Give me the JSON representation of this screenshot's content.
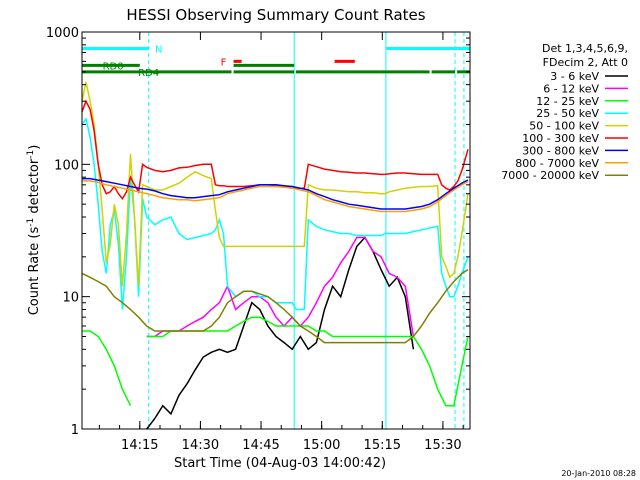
{
  "chart_data": {
    "type": "line",
    "title": "HESSI Observing Summary Count Rates",
    "xlabel": "Start Time (04-Aug-03 14:00:42)",
    "ylabel_main": "Count Rate (s",
    "ylabel_sup1": "-1",
    "ylabel_mid": " detector",
    "ylabel_sup2": "-1",
    "ylabel_end": ")",
    "yscale": "log",
    "ylim": [
      1,
      1000
    ],
    "xlim": [
      0,
      96
    ],
    "x_units": "minutes after 14:00:42",
    "x_ticks": [
      {
        "value": 14.3,
        "label": "14:15"
      },
      {
        "value": 29.3,
        "label": "14:30"
      },
      {
        "value": 44.3,
        "label": "14:45"
      },
      {
        "value": 59.3,
        "label": "15:00"
      },
      {
        "value": 74.3,
        "label": "15:15"
      },
      {
        "value": 89.3,
        "label": "15:30"
      }
    ],
    "y_ticks": [
      {
        "value": 1,
        "label": "1"
      },
      {
        "value": 10,
        "label": "10"
      },
      {
        "value": 100,
        "label": "100"
      },
      {
        "value": 1000,
        "label": "1000"
      }
    ],
    "legend_header": [
      "Det 1,3,4,5,6,9,",
      "FDecim 2, Att 0"
    ],
    "legend_position": "right",
    "series": [
      {
        "name": "3 - 6 keV",
        "color": "#000000",
        "x": [
          0,
          4,
          8,
          10,
          12,
          14,
          16,
          18,
          20,
          22,
          24,
          26,
          28,
          30,
          32,
          34,
          36,
          38,
          40,
          42,
          44,
          46,
          48,
          50,
          52,
          54,
          56,
          58,
          60,
          62,
          64,
          66,
          68,
          70,
          72,
          74,
          76,
          78,
          80,
          82,
          84,
          86,
          88,
          90,
          92,
          94,
          95.5
        ],
        "y": [
          null,
          null,
          null,
          null,
          null,
          null,
          1.0,
          1.2,
          1.5,
          1.3,
          1.8,
          2.2,
          2.8,
          3.5,
          3.8,
          4,
          3.8,
          4,
          6,
          9,
          8,
          6,
          5,
          4.5,
          4,
          5,
          4,
          4.5,
          8,
          12,
          10,
          16,
          24,
          28,
          22,
          16,
          12,
          14,
          10,
          4,
          null,
          null,
          null,
          null,
          null,
          null,
          null
        ]
      },
      {
        "name": "6 - 12 keV",
        "color": "#ff00ff",
        "x": [
          0,
          2,
          4,
          6,
          8,
          10,
          12,
          14,
          16,
          18,
          20,
          22,
          24,
          26,
          28,
          30,
          32,
          34,
          36,
          38,
          40,
          42,
          44,
          46,
          48,
          50,
          52,
          54,
          56,
          58,
          60,
          62,
          64,
          66,
          68,
          70,
          72,
          74,
          76,
          78,
          80,
          82,
          84,
          86,
          88,
          90,
          92,
          94,
          95.5
        ],
        "y": [
          null,
          null,
          null,
          null,
          null,
          null,
          null,
          null,
          5,
          5,
          5.5,
          5.5,
          5.5,
          6,
          6.5,
          7,
          8,
          9,
          12,
          8,
          9,
          10,
          10,
          9,
          7,
          6,
          7,
          6,
          7,
          9,
          12,
          14,
          18,
          22,
          28,
          28,
          22,
          20,
          15,
          14,
          12,
          5,
          null,
          null,
          null,
          null,
          null,
          null,
          null
        ]
      },
      {
        "name": "12 - 25 keV",
        "color": "#00ff00",
        "x": [
          0,
          2,
          4,
          6,
          8,
          10,
          12,
          14,
          16,
          18,
          20,
          22,
          24,
          26,
          28,
          30,
          32,
          34,
          36,
          38,
          40,
          42,
          44,
          46,
          48,
          50,
          52,
          54,
          56,
          58,
          60,
          62,
          64,
          66,
          68,
          70,
          72,
          74,
          76,
          78,
          80,
          82,
          84,
          86,
          88,
          90,
          92,
          94,
          95.5
        ],
        "y": [
          5.5,
          5.5,
          5,
          4,
          3,
          2,
          1.5,
          null,
          5,
          5,
          5,
          5.5,
          5.5,
          5.5,
          5.5,
          5.5,
          5.5,
          5.5,
          5.5,
          6,
          6.5,
          7,
          7,
          6.5,
          6,
          6,
          6,
          6,
          6,
          5.5,
          5.5,
          5,
          5,
          5,
          5,
          5,
          5,
          5,
          5,
          5,
          5,
          5,
          4,
          3,
          2,
          1.5,
          1.5,
          3,
          5
        ]
      },
      {
        "name": "25 - 50 keV",
        "color": "#00ffff",
        "x": [
          0,
          1,
          2,
          3,
          4,
          5,
          6,
          7,
          8,
          9,
          10,
          11,
          12,
          13,
          14,
          15,
          16,
          18,
          20,
          22,
          24,
          26,
          28,
          30,
          32,
          33,
          34,
          35,
          36,
          38,
          40,
          42,
          44,
          46,
          48,
          50,
          52,
          53,
          54,
          55,
          56,
          58,
          60,
          62,
          64,
          66,
          68,
          70,
          72,
          74,
          75,
          76,
          78,
          80,
          82,
          84,
          86,
          88,
          89,
          90,
          91,
          92,
          93,
          94,
          95.5
        ],
        "y": [
          200,
          220,
          160,
          100,
          50,
          22,
          15,
          35,
          45,
          25,
          8,
          20,
          80,
          40,
          10,
          55,
          40,
          35,
          38,
          40,
          30,
          27,
          28,
          29,
          30,
          32,
          38,
          30,
          12,
          10,
          11,
          11,
          10,
          10,
          9,
          9,
          9,
          8,
          8,
          8,
          38,
          34,
          32,
          31,
          30,
          30,
          29,
          29,
          29,
          29,
          30,
          30,
          30,
          30,
          31,
          32,
          33,
          34,
          15,
          12,
          10,
          10,
          12,
          15,
          20
        ]
      },
      {
        "name": "50 - 100 keV",
        "color": "#d2d200",
        "x": [
          0,
          1,
          2,
          3,
          4,
          5,
          6,
          7,
          8,
          9,
          10,
          11,
          12,
          13,
          14,
          15,
          16,
          18,
          20,
          22,
          24,
          26,
          28,
          30,
          32,
          33,
          34,
          35,
          36,
          38,
          40,
          42,
          44,
          46,
          48,
          50,
          52,
          53,
          54,
          55,
          56,
          58,
          60,
          62,
          64,
          66,
          68,
          70,
          72,
          74,
          75,
          76,
          78,
          80,
          82,
          84,
          86,
          88,
          89,
          90,
          91,
          92,
          93,
          94,
          95.5
        ],
        "y": [
          300,
          420,
          300,
          200,
          100,
          45,
          18,
          25,
          50,
          35,
          12,
          30,
          120,
          40,
          12,
          70,
          68,
          64,
          64,
          68,
          72,
          80,
          88,
          82,
          78,
          45,
          28,
          24,
          24,
          24,
          24,
          24,
          24,
          24,
          24,
          24,
          24,
          24,
          24,
          24,
          70,
          66,
          64,
          64,
          63,
          62,
          62,
          61,
          61,
          60,
          60,
          62,
          64,
          66,
          67,
          68,
          68,
          69,
          20,
          17,
          14,
          15,
          20,
          30,
          60
        ]
      },
      {
        "name": "100 - 300 keV",
        "color": "#ff0000",
        "x": [
          0,
          1,
          2,
          3,
          4,
          5,
          6,
          7,
          8,
          9,
          10,
          11,
          12,
          13,
          14,
          15,
          16,
          18,
          20,
          22,
          24,
          26,
          28,
          30,
          32,
          33,
          34,
          35,
          36,
          38,
          40,
          42,
          44,
          46,
          48,
          50,
          52,
          53,
          54,
          55,
          56,
          58,
          60,
          62,
          64,
          66,
          68,
          70,
          72,
          74,
          75,
          76,
          78,
          80,
          82,
          84,
          86,
          88,
          89,
          90,
          91,
          92,
          93,
          94,
          95.5
        ],
        "y": [
          250,
          300,
          260,
          180,
          100,
          70,
          60,
          62,
          68,
          60,
          55,
          62,
          80,
          70,
          62,
          100,
          95,
          90,
          88,
          90,
          94,
          95,
          98,
          100,
          100,
          70,
          69,
          69,
          68,
          68,
          68,
          69,
          70,
          70,
          69,
          68,
          66,
          66,
          66,
          66,
          100,
          96,
          92,
          90,
          88,
          87,
          86,
          86,
          85,
          84,
          84,
          85,
          86,
          86,
          85,
          84,
          84,
          84,
          70,
          66,
          64,
          68,
          75,
          90,
          130
        ]
      },
      {
        "name": "300 - 800 keV",
        "color": "#0000ff",
        "x": [
          0,
          2,
          4,
          6,
          8,
          10,
          12,
          14,
          16,
          18,
          20,
          22,
          24,
          26,
          28,
          30,
          32,
          34,
          36,
          38,
          40,
          42,
          44,
          46,
          48,
          50,
          52,
          54,
          56,
          58,
          60,
          62,
          64,
          66,
          68,
          70,
          72,
          74,
          76,
          78,
          80,
          82,
          84,
          86,
          88,
          90,
          92,
          94,
          95.5
        ],
        "y": [
          78,
          78,
          76,
          74,
          72,
          70,
          68,
          66,
          65,
          63,
          60,
          58,
          57,
          56,
          56,
          57,
          58,
          59,
          62,
          64,
          66,
          68,
          70,
          70,
          70,
          69,
          68,
          66,
          64,
          60,
          57,
          54,
          52,
          50,
          49,
          48,
          47,
          46,
          46,
          46,
          46,
          47,
          48,
          50,
          54,
          60,
          66,
          72,
          76
        ]
      },
      {
        "name": "800 - 7000 keV",
        "color": "#ffa000",
        "x": [
          0,
          2,
          4,
          6,
          8,
          10,
          12,
          14,
          16,
          18,
          20,
          22,
          24,
          26,
          28,
          30,
          32,
          34,
          36,
          38,
          40,
          42,
          44,
          46,
          48,
          50,
          52,
          54,
          56,
          58,
          60,
          62,
          64,
          66,
          68,
          70,
          72,
          74,
          76,
          78,
          80,
          82,
          84,
          86,
          88,
          90,
          92,
          94,
          95.5
        ],
        "y": [
          75,
          75,
          73,
          70,
          68,
          66,
          64,
          62,
          60,
          58,
          56,
          55,
          54,
          54,
          53,
          54,
          55,
          56,
          60,
          62,
          64,
          66,
          68,
          68,
          68,
          67,
          66,
          64,
          62,
          58,
          54,
          52,
          50,
          48,
          47,
          46,
          45,
          44,
          44,
          44,
          44,
          45,
          46,
          48,
          52,
          58,
          64,
          70,
          74
        ]
      },
      {
        "name": "7000 - 20000 keV",
        "color": "#808000",
        "x": [
          0,
          2,
          4,
          6,
          8,
          10,
          12,
          14,
          16,
          18,
          20,
          22,
          24,
          26,
          28,
          30,
          32,
          34,
          36,
          38,
          40,
          42,
          44,
          46,
          48,
          50,
          52,
          54,
          56,
          58,
          60,
          62,
          64,
          66,
          68,
          70,
          72,
          74,
          76,
          78,
          80,
          82,
          84,
          86,
          88,
          90,
          92,
          94,
          95.5
        ],
        "y": [
          15,
          14,
          13,
          12,
          10,
          9,
          8,
          7,
          6,
          5.5,
          5.5,
          5.5,
          5.5,
          5.5,
          5.5,
          5.5,
          6,
          7,
          9,
          10,
          11,
          11,
          10.5,
          10,
          9,
          8,
          7,
          6,
          5.5,
          5,
          4.5,
          4.5,
          4.5,
          4.5,
          4.5,
          4.5,
          4.5,
          4.5,
          4.5,
          4.5,
          4.5,
          5,
          6,
          7.5,
          9,
          11,
          13,
          15,
          16
        ]
      }
    ],
    "vertical_lines": [
      {
        "x": 16.5,
        "style": "dashed",
        "color": "#00ffff"
      },
      {
        "x": 52.5,
        "style": "solid",
        "color": "#00ffff"
      },
      {
        "x": 75.2,
        "style": "solid",
        "color": "#00ffff"
      },
      {
        "x": 92.3,
        "style": "dashed",
        "color": "#00ffff"
      },
      {
        "x": 94.5,
        "style": "dashed",
        "color": "#00ffff"
      }
    ],
    "state_bars": [
      {
        "color": "#00ffff",
        "y": 750,
        "segments": [
          [
            0,
            16.5
          ],
          [
            75.2,
            96
          ]
        ]
      },
      {
        "color": "#ff0000",
        "y": 600,
        "segments": [
          [
            37.5,
            39.5
          ],
          [
            62.5,
            67.5
          ]
        ]
      },
      {
        "color": "#008000",
        "y": 560,
        "segments": [
          [
            0,
            14.3
          ],
          [
            37.5,
            52.5
          ]
        ]
      },
      {
        "color": "#008000",
        "y": 500,
        "segments": [
          [
            0,
            37.0
          ],
          [
            37.5,
            52.5
          ],
          [
            52.9,
            86.0
          ],
          [
            86.5,
            92.3
          ],
          [
            92.8,
            96.0
          ]
        ]
      }
    ],
    "annotations": [
      {
        "text": "N",
        "x": 19.0,
        "y": 750,
        "color": "#00ffff"
      },
      {
        "text": "F",
        "x": 35.0,
        "y": 600,
        "color": "#ff0000"
      },
      {
        "text": "RD0",
        "x": 7.7,
        "y": 560,
        "color": "#008000"
      },
      {
        "text": "RD4",
        "x": 16.5,
        "y": 500,
        "color": "#008000"
      }
    ]
  },
  "footer": {
    "timestamp": "20-Jan-2010 08:28"
  }
}
